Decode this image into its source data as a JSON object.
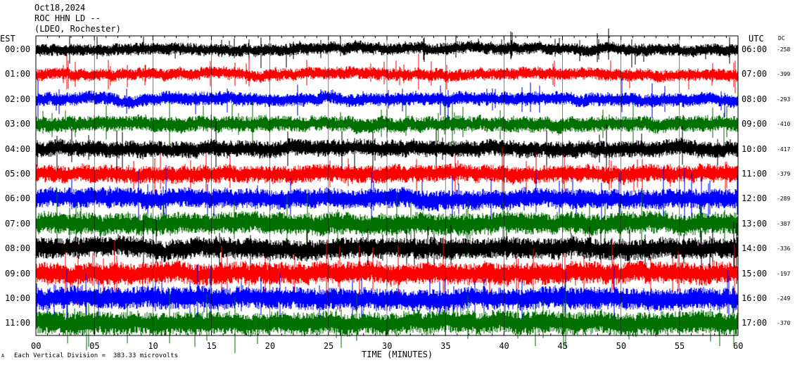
{
  "header": {
    "date": "Oct18,2024",
    "station": "ROC HHN LD --",
    "location": "(LDEO, Rochester)"
  },
  "labels": {
    "left_tz": "EST",
    "right_tz": "UTC",
    "dc": "DC",
    "xlabel": "TIME (MINUTES)",
    "scale_prefix": "A",
    "scale": "Each Vertical Division =  383.33 microvolts"
  },
  "colors": {
    "trace_cycle": [
      "#000000",
      "#ff0000",
      "#0000ff",
      "#007000"
    ]
  },
  "chart_data": {
    "type": "line",
    "title": "",
    "xlabel": "TIME (MINUTES)",
    "xlim": [
      0,
      60
    ],
    "x_ticks": [
      "00",
      "05",
      "10",
      "15",
      "20",
      "25",
      "30",
      "35",
      "40",
      "45",
      "50",
      "55",
      "60"
    ],
    "rows_left": [
      "00:00",
      "01:00",
      "02:00",
      "03:00",
      "04:00",
      "05:00",
      "06:00",
      "07:00",
      "08:00",
      "09:00",
      "10:00",
      "11:00"
    ],
    "rows_right": [
      "06:00",
      "07:00",
      "08:00",
      "09:00",
      "10:00",
      "11:00",
      "12:00",
      "13:00",
      "14:00",
      "15:00",
      "16:00",
      "17:00"
    ],
    "dc_offsets": [
      "-258",
      "-399",
      "-293",
      "-410",
      "-417",
      "-379",
      "-289",
      "-387",
      "-336",
      "-197",
      "-249",
      "-370"
    ],
    "relative_amplitude": [
      0.55,
      0.55,
      0.6,
      0.7,
      0.75,
      0.8,
      0.9,
      1.0,
      0.95,
      1.0,
      1.0,
      1.05
    ],
    "grid": true
  }
}
